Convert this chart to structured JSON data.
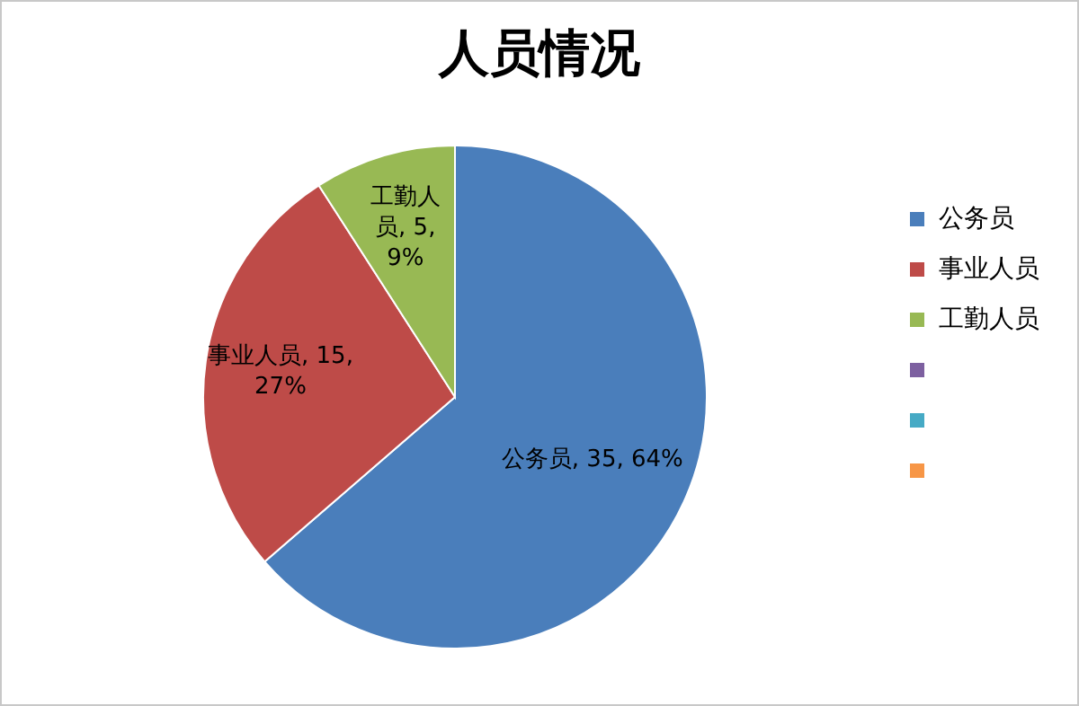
{
  "chart_data": {
    "type": "pie",
    "title": "人员情况",
    "categories": [
      "公务员",
      "事业人员",
      "工勤人员",
      null,
      null,
      null
    ],
    "values": [
      35,
      15,
      5,
      null,
      null,
      null
    ],
    "value_labels": [
      "公务员, 35, 64%",
      "事业人员, 15, 27%",
      "工勤人员, 5, 9%",
      null,
      null,
      null
    ],
    "colors": [
      "#4a7ebb",
      "#be4b48",
      "#98b954",
      "#7d60a0",
      "#46aac5",
      "#f79646"
    ],
    "legend": "right"
  }
}
